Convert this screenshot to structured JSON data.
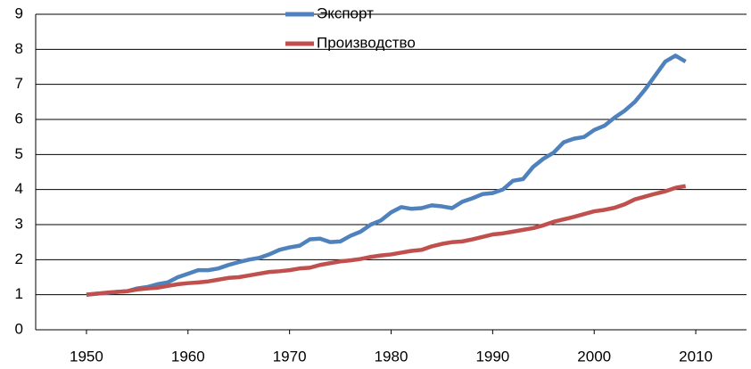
{
  "chart_data": {
    "type": "line",
    "x": [
      1950,
      1951,
      1952,
      1953,
      1954,
      1955,
      1956,
      1957,
      1958,
      1959,
      1960,
      1961,
      1962,
      1963,
      1964,
      1965,
      1966,
      1967,
      1968,
      1969,
      1970,
      1971,
      1972,
      1973,
      1974,
      1975,
      1976,
      1977,
      1978,
      1979,
      1980,
      1981,
      1982,
      1983,
      1984,
      1985,
      1986,
      1987,
      1988,
      1989,
      1990,
      1991,
      1992,
      1993,
      1994,
      1995,
      1996,
      1997,
      1998,
      1999,
      2000,
      2001,
      2002,
      2003,
      2004,
      2005,
      2006,
      2007,
      2008,
      2009
    ],
    "series": [
      {
        "name": "Экспорт",
        "color": "#4f81bd",
        "values": [
          1.0,
          1.03,
          1.05,
          1.08,
          1.1,
          1.18,
          1.22,
          1.3,
          1.35,
          1.5,
          1.6,
          1.7,
          1.7,
          1.75,
          1.85,
          1.93,
          2.0,
          2.05,
          2.15,
          2.28,
          2.35,
          2.4,
          2.58,
          2.6,
          2.5,
          2.52,
          2.68,
          2.8,
          3.0,
          3.12,
          3.35,
          3.5,
          3.45,
          3.47,
          3.55,
          3.52,
          3.47,
          3.65,
          3.75,
          3.87,
          3.9,
          4.0,
          4.25,
          4.3,
          4.65,
          4.88,
          5.05,
          5.35,
          5.45,
          5.5,
          5.7,
          5.82,
          6.05,
          6.25,
          6.5,
          6.85,
          7.25,
          7.65,
          7.82,
          7.65
        ]
      },
      {
        "name": "Производство",
        "color": "#c0504d",
        "values": [
          1.0,
          1.03,
          1.06,
          1.08,
          1.1,
          1.15,
          1.18,
          1.2,
          1.25,
          1.3,
          1.33,
          1.35,
          1.38,
          1.43,
          1.48,
          1.5,
          1.55,
          1.6,
          1.65,
          1.67,
          1.7,
          1.75,
          1.77,
          1.85,
          1.9,
          1.95,
          1.98,
          2.02,
          2.08,
          2.12,
          2.15,
          2.2,
          2.25,
          2.28,
          2.38,
          2.45,
          2.5,
          2.52,
          2.58,
          2.65,
          2.72,
          2.75,
          2.8,
          2.85,
          2.9,
          2.98,
          3.08,
          3.15,
          3.22,
          3.3,
          3.38,
          3.42,
          3.48,
          3.58,
          3.72,
          3.8,
          3.88,
          3.95,
          4.05,
          4.1
        ]
      }
    ],
    "xlim": [
      1945,
      2015
    ],
    "xticks": [
      1950,
      1960,
      1970,
      1980,
      1990,
      2000,
      2010
    ],
    "ylim": [
      0,
      9
    ],
    "yticks": [
      0,
      1,
      2,
      3,
      4,
      5,
      6,
      7,
      8,
      9
    ],
    "grid": true
  }
}
